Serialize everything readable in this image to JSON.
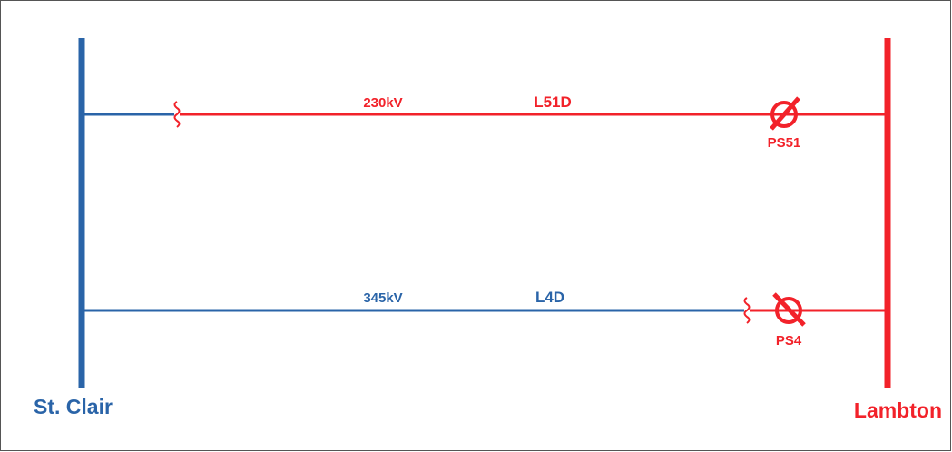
{
  "buses": [
    {
      "label": "St. Clair"
    },
    {
      "label": "Lambton"
    }
  ],
  "lines": [
    {
      "voltage": "230kV",
      "name": "L51D",
      "device": "PS51"
    },
    {
      "voltage": "345kV",
      "name": "L4D",
      "device": "PS4"
    }
  ]
}
